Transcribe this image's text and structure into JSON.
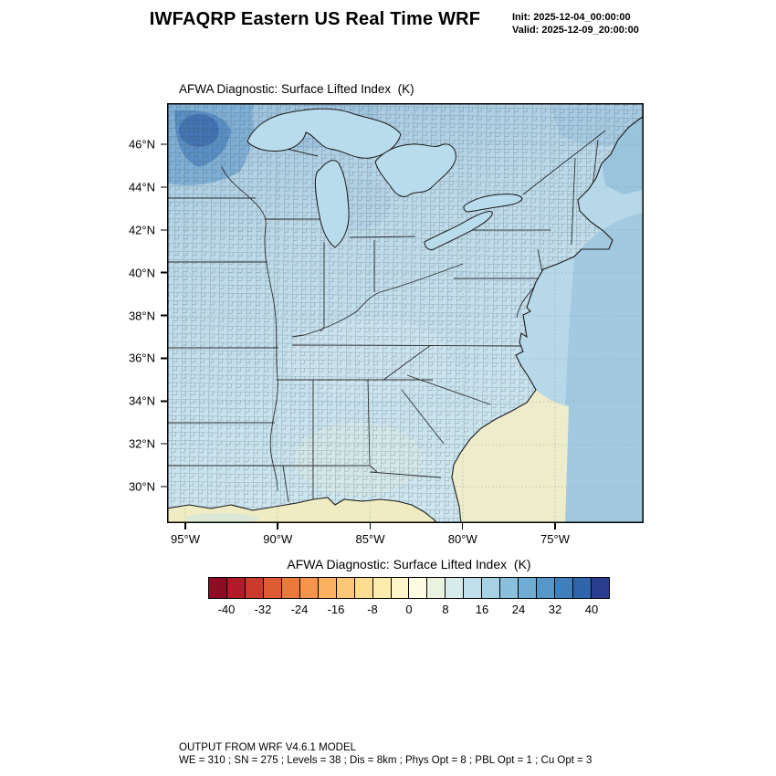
{
  "header": {
    "title": "IWFAQRP Eastern US Real Time WRF",
    "init": "Init: 2025-12-04_00:00:00",
    "valid": "Valid: 2025-12-09_20:00:00"
  },
  "map": {
    "title": "AFWA Diagnostic: Surface Lifted Index  (K)"
  },
  "chart_data": {
    "type": "heatmap",
    "title": "AFWA Diagnostic: Surface Lifted Index (K)",
    "variable": "Surface Lifted Index",
    "units": "K",
    "region": "Eastern United States with county outlines",
    "x_axis": {
      "ticks": [
        "95°W",
        "90°W",
        "85°W",
        "80°W",
        "75°W"
      ],
      "approx_range": [
        "96°W",
        "70°W"
      ]
    },
    "y_axis": {
      "ticks": [
        "46°N",
        "44°N",
        "42°N",
        "40°N",
        "38°N",
        "36°N",
        "34°N",
        "32°N",
        "30°N"
      ],
      "approx_range": [
        "28.5°N",
        "48°N"
      ]
    },
    "colorbar": {
      "label": "AFWA Diagnostic: Surface Lifted Index  (K)",
      "tick_labels": [
        "-40",
        "-32",
        "-24",
        "-16",
        "-8",
        "0",
        "8",
        "16",
        "24",
        "32",
        "40"
      ],
      "level_min": -44,
      "level_max": 44,
      "level_step": 4,
      "colors": [
        "#8e0d25",
        "#b11a28",
        "#cc3a2e",
        "#df5b33",
        "#ec783c",
        "#f5944c",
        "#fab05f",
        "#fcc777",
        "#fddd92",
        "#feecae",
        "#fef6cb",
        "#fdfbe2",
        "#eaf3e0",
        "#d6ebea",
        "#bfe0ea",
        "#a6d2e4",
        "#8bc0dc",
        "#6fadd3",
        "#5597c8",
        "#3f7fba",
        "#2f66ab",
        "#2a3d8f"
      ]
    },
    "field_summary": [
      {
        "region": "Minnesota / upper Midwest maximum",
        "approx_value_K": 30
      },
      {
        "region": "Most land areas (Midwest, Ohio Valley, Northeast, Southeast)",
        "approx_value_K": 12
      },
      {
        "region": "Gulf of Mexico and southeast coastal Atlantic waters",
        "approx_value_K": 4
      },
      {
        "region": "Open Atlantic along eastern edge of domain",
        "approx_value_K": 20
      }
    ]
  },
  "footer": {
    "line1": "OUTPUT FROM WRF V4.6.1 MODEL",
    "line2": "WE = 310 ; SN = 275 ; Levels = 38 ; Dis = 8km ; Phys Opt = 8 ; PBL Opt = 1 ; Cu Opt = 3"
  }
}
